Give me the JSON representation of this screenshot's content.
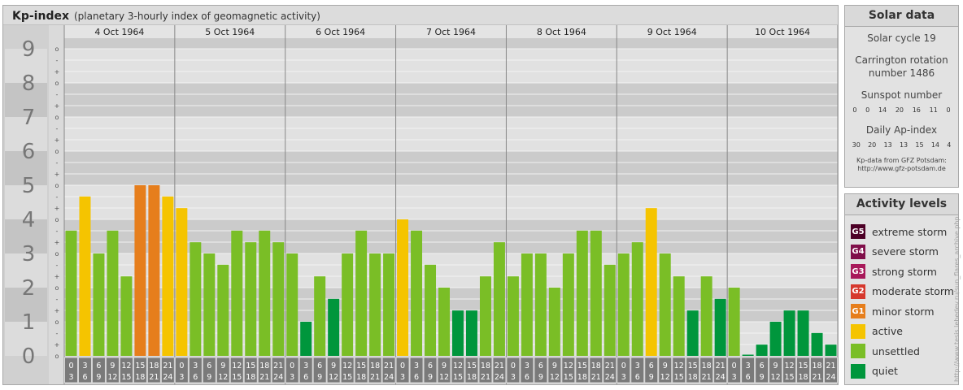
{
  "header": {
    "title": "Kp-index",
    "subtitle": "(planetary 3-hourly index of geomagnetic activity)"
  },
  "chart_data": {
    "type": "bar",
    "title": "Kp-index",
    "subtitle": "(planetary 3-hourly index of geomagnetic activity)",
    "days": [
      "4 Oct 1964",
      "5 Oct 1964",
      "6 Oct 1964",
      "7 Oct 1964",
      "8 Oct 1964",
      "9 Oct 1964",
      "10 Oct 1964"
    ],
    "y_ticks": [
      "0",
      "1",
      "2",
      "3",
      "4",
      "5",
      "6",
      "7",
      "8",
      "9"
    ],
    "sub_ticks": [
      "o",
      "+",
      "-"
    ],
    "ylim": [
      0,
      9.33
    ],
    "x_ticks_top": [
      "0",
      "3",
      "6",
      "9",
      "12",
      "15",
      "18",
      "21"
    ],
    "x_ticks_bottom": [
      "3",
      "6",
      "9",
      "12",
      "15",
      "18",
      "21",
      "24"
    ],
    "values": [
      [
        3.67,
        4.67,
        3.0,
        3.67,
        2.33,
        5.0,
        5.0,
        4.67
      ],
      [
        4.33,
        3.33,
        3.0,
        2.67,
        3.67,
        3.33,
        3.67,
        3.33
      ],
      [
        3.0,
        1.0,
        2.33,
        1.67,
        3.0,
        3.67,
        3.0,
        3.0
      ],
      [
        4.0,
        3.67,
        2.67,
        2.0,
        1.33,
        1.33,
        2.33,
        3.33
      ],
      [
        2.33,
        3.0,
        3.0,
        2.0,
        3.0,
        3.67,
        3.67,
        2.67
      ],
      [
        3.0,
        3.33,
        4.33,
        3.0,
        2.33,
        1.33,
        2.33,
        1.67
      ],
      [
        2.0,
        0.0,
        0.33,
        1.0,
        1.33,
        1.33,
        0.67,
        0.33
      ]
    ],
    "level_colors": {
      "quiet": "#00963c",
      "unsettled": "#7abe26",
      "active": "#f5c400",
      "minor": "#e67e1c",
      "moderate": "#d6382d",
      "strong": "#a8195a",
      "severe": "#800f4a",
      "extreme": "#4d0026"
    },
    "grid": true
  },
  "solar": {
    "title": "Solar data",
    "cycle": "Solar cycle 19",
    "carrington_line1": "Carrington rotation",
    "carrington_line2": "number 1486",
    "sunspot_label": "Sunspot number",
    "sunspot_values": [
      "0",
      "0",
      "14",
      "20",
      "16",
      "11",
      "0"
    ],
    "ap_label": "Daily Ap-index",
    "ap_values": [
      "30",
      "20",
      "13",
      "13",
      "15",
      "14",
      "4"
    ],
    "credit_line1": "Kp-data from GFZ Potsdam:",
    "credit_line2": "http://www.gfz-potsdam.de"
  },
  "activity": {
    "title": "Activity levels",
    "levels": [
      {
        "code": "G5",
        "label": "extreme storm",
        "color": "#4d0026"
      },
      {
        "code": "G4",
        "label": "severe storm",
        "color": "#800f4a"
      },
      {
        "code": "G3",
        "label": "strong storm",
        "color": "#a8195a"
      },
      {
        "code": "G2",
        "label": "moderate storm",
        "color": "#d6382d"
      },
      {
        "code": "G1",
        "label": "minor storm",
        "color": "#e67e1c"
      },
      {
        "code": "",
        "label": "active",
        "color": "#f5c400"
      },
      {
        "code": "",
        "label": "unsettled",
        "color": "#7abe26"
      },
      {
        "code": "",
        "label": "quiet",
        "color": "#00963c"
      }
    ]
  },
  "watermark": "http://www.tesis.lebedev.ru/sun_flares_archive.php"
}
